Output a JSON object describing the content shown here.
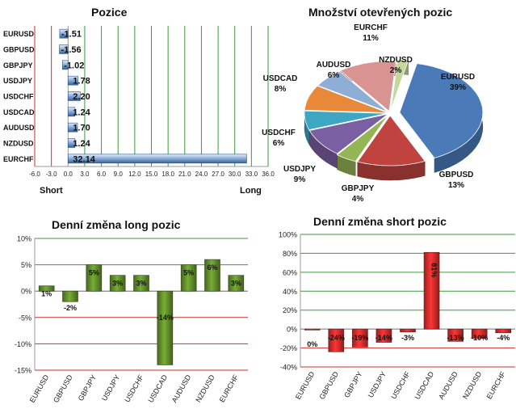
{
  "colors": {
    "gridline_red": "#c9302c",
    "gridline_green": "#3a9a3a",
    "bar_blue": "#4f7ab5",
    "bar_green": "#5f8a2a",
    "bar_red": "#cc2a2a"
  },
  "chart_data": [
    {
      "type": "bar",
      "orientation": "horizontal",
      "title": "Pozice",
      "categories": [
        "EURUSD",
        "GBPUSD",
        "GBPJPY",
        "USDJPY",
        "USDCHF",
        "USDCAD",
        "AUDUSD",
        "NZDUSD",
        "EURCHF"
      ],
      "values": [
        -1.51,
        -1.56,
        -1.02,
        1.78,
        2.2,
        1.24,
        1.7,
        1.24,
        32.14
      ],
      "value_labels": [
        "-1.51",
        "-1.56",
        "-1.02",
        "1.78",
        "2.20",
        "1.24",
        "1.70",
        "1.24",
        "32.14"
      ],
      "xlim": [
        -6.0,
        36.0
      ],
      "xticks": [
        -6.0,
        -3.0,
        0.0,
        3.0,
        6.0,
        9.0,
        12.0,
        15.0,
        18.0,
        21.0,
        24.0,
        27.0,
        30.0,
        33.0,
        36.0
      ],
      "xtick_labels": [
        "-6.0",
        "-3.0",
        "0.0",
        "3.0",
        "6.0",
        "9.0",
        "12.0",
        "15.0",
        "18.0",
        "21.0",
        "24.0",
        "27.0",
        "30.0",
        "33.0",
        "36.0"
      ],
      "left_label": "Short",
      "right_label": "Long"
    },
    {
      "type": "pie",
      "title": "Množství otevřených pozic",
      "slices": [
        {
          "name": "EURUSD",
          "value": 39,
          "label": "39%",
          "color": "#4a7ab8"
        },
        {
          "name": "GBPUSD",
          "value": 13,
          "label": "13%",
          "color": "#c0433f"
        },
        {
          "name": "GBPJPY",
          "value": 4,
          "label": "4%",
          "color": "#93b553"
        },
        {
          "name": "USDJPY",
          "value": 9,
          "label": "9%",
          "color": "#7b5fa3"
        },
        {
          "name": "USDCHF",
          "value": 6,
          "label": "6%",
          "color": "#3da6c2"
        },
        {
          "name": "USDCAD",
          "value": 8,
          "label": "8%",
          "color": "#e8893a"
        },
        {
          "name": "AUDUSD",
          "value": 6,
          "label": "6%",
          "color": "#8eaed6"
        },
        {
          "name": "EURCHF",
          "value": 11,
          "label": "11%",
          "color": "#d99492"
        },
        {
          "name": "NZDUSD",
          "value": 2,
          "label": "2%",
          "color": "#c4d89a"
        }
      ]
    },
    {
      "type": "bar",
      "title": "Denní změna long pozic",
      "categories": [
        "EURUSD",
        "GBPUSD",
        "GBPJPY",
        "USDJPY",
        "USDCHF",
        "USDCAD",
        "AUDUSD",
        "NZDUSD",
        "EURCHF"
      ],
      "values": [
        1,
        -2,
        5,
        3,
        3,
        -14,
        5,
        6,
        3
      ],
      "value_labels": [
        "1%",
        "-2%",
        "5%",
        "3%",
        "3%",
        "-14%",
        "5%",
        "6%",
        "3%"
      ],
      "ylim": [
        -15,
        10
      ],
      "yticks": [
        10,
        5,
        0,
        -5,
        -10,
        -15
      ],
      "ytick_labels": [
        "10%",
        "5%",
        "0%",
        "-5%",
        "-10%",
        "-15%"
      ]
    },
    {
      "type": "bar",
      "title": "Denní změna short pozic",
      "categories": [
        "EURUSD",
        "GBPUSD",
        "GBPJPY",
        "USDJPY",
        "USDCHF",
        "USDCAD",
        "AUDUSD",
        "NZDUSD",
        "EURCHF"
      ],
      "values": [
        0,
        -24,
        -19,
        -14,
        -3,
        81,
        -13,
        -10,
        -4
      ],
      "value_labels": [
        "0%",
        "-24%",
        "-19%",
        "-14%",
        "-3%",
        "81%",
        "-13%",
        "-10%",
        "-4%"
      ],
      "ylim": [
        -40,
        100
      ],
      "yticks": [
        100,
        80,
        60,
        40,
        20,
        0,
        -20,
        -40
      ],
      "ytick_labels": [
        "100%",
        "80%",
        "60%",
        "40%",
        "20%",
        "0%",
        "-20%",
        "-40%"
      ]
    }
  ]
}
